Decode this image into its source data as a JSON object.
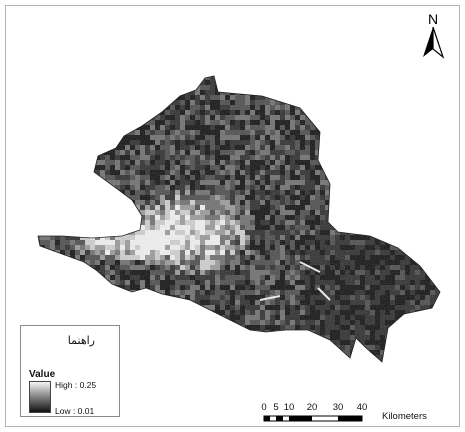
{
  "north_arrow": {
    "label": "N",
    "icon": "north-arrow-icon"
  },
  "legend": {
    "title": "راهنما",
    "field_label": "Value",
    "high_label": "High : 0.25",
    "low_label": "Low : 0.01",
    "ramp_colors": [
      "#f5f5f5",
      "#8c8c8c",
      "#111111"
    ]
  },
  "scale_bar": {
    "ticks": [
      "0",
      "5",
      "10",
      "20",
      "30",
      "40"
    ],
    "unit": "Kilometers"
  },
  "map": {
    "raster_palette": [
      "#0d0d0d",
      "#2a2a2a",
      "#4a4a4a",
      "#6e6e6e",
      "#9a9a9a",
      "#d0d0d0",
      "#f4f4f4"
    ]
  }
}
